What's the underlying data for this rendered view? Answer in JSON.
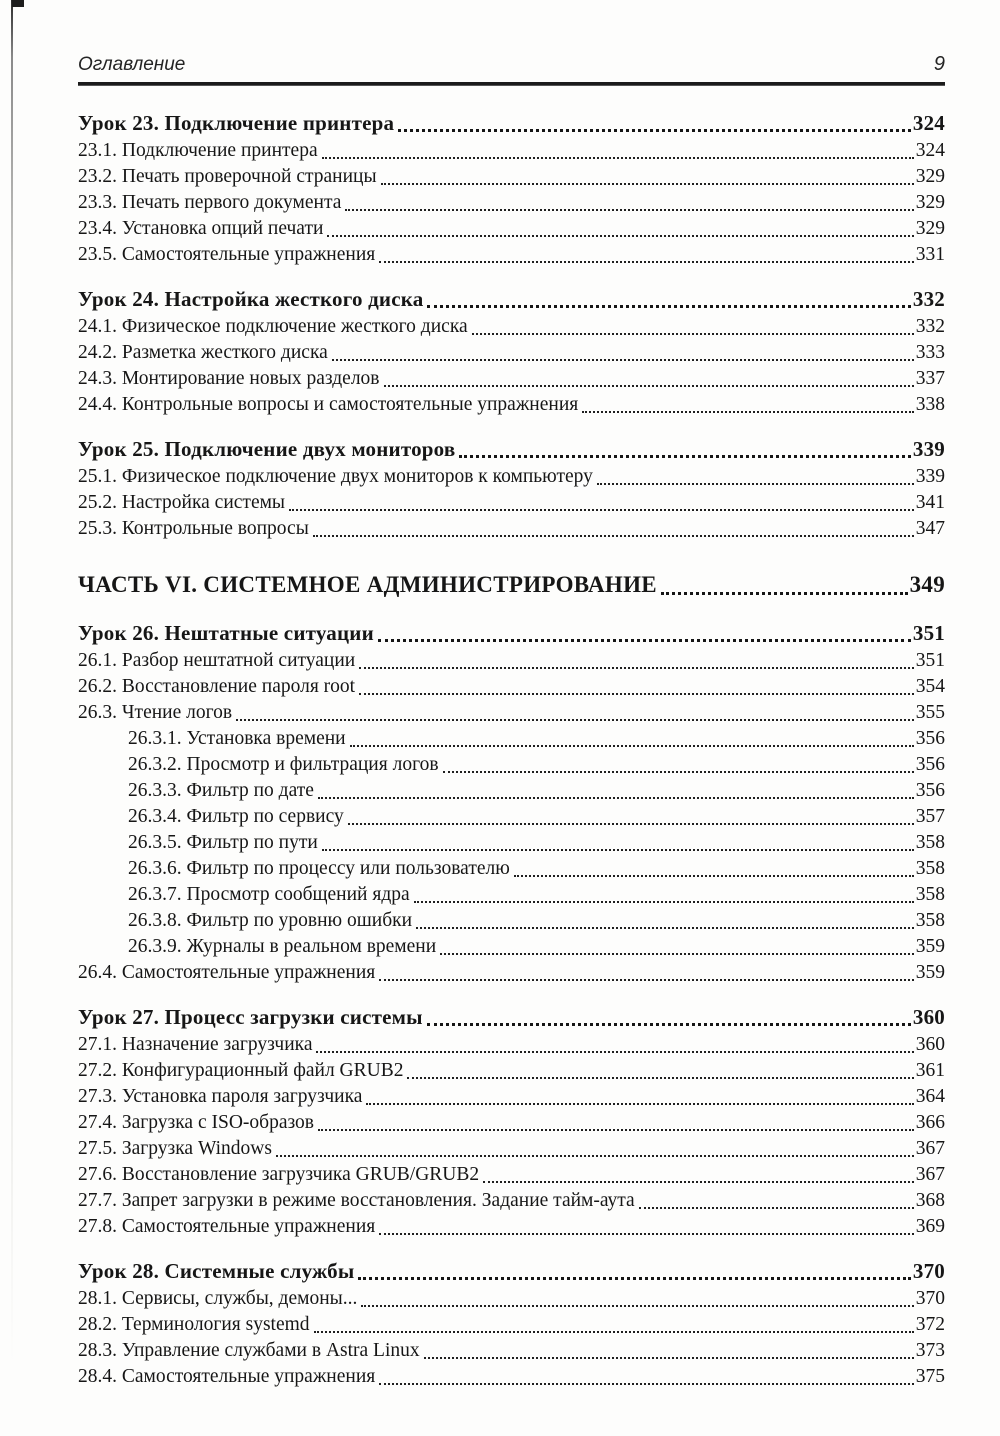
{
  "colors": {
    "paper": "#fdfdfc",
    "ink": "#161616"
  },
  "header": {
    "title": "Оглавление",
    "page_number": "9"
  },
  "toc": {
    "entries": [
      {
        "label": "Урок 23. Подключение принтера",
        "page": "324",
        "level": "chapter"
      },
      {
        "label": "23.1. Подключение принтера",
        "page": "324",
        "level": "section"
      },
      {
        "label": "23.2. Печать проверочной страницы",
        "page": "329",
        "level": "section"
      },
      {
        "label": "23.3. Печать первого документа",
        "page": "329",
        "level": "section"
      },
      {
        "label": "23.4. Установка опций печати",
        "page": "329",
        "level": "section"
      },
      {
        "label": "23.5. Самостоятельные упражнения",
        "page": "331",
        "level": "section"
      },
      {
        "label": "Урок 24. Настройка жесткого диска",
        "page": "332",
        "level": "chapter"
      },
      {
        "label": "24.1. Физическое подключение жесткого диска",
        "page": "332",
        "level": "section"
      },
      {
        "label": "24.2. Разметка жесткого диска",
        "page": "333",
        "level": "section"
      },
      {
        "label": "24.3. Монтирование новых разделов",
        "page": "337",
        "level": "section"
      },
      {
        "label": "24.4. Контрольные вопросы и самостоятельные упражнения",
        "page": "338",
        "level": "section"
      },
      {
        "label": "Урок 25. Подключение двух мониторов",
        "page": "339",
        "level": "chapter"
      },
      {
        "label": "25.1. Физическое подключение двух мониторов к компьютеру",
        "page": "339",
        "level": "section"
      },
      {
        "label": "25.2. Настройка системы",
        "page": "341",
        "level": "section"
      },
      {
        "label": "25.3. Контрольные вопросы",
        "page": "347",
        "level": "section"
      },
      {
        "label": "ЧАСТЬ VI. СИСТЕМНОЕ АДМИНИСТРИРОВАНИЕ",
        "page": "349",
        "level": "part"
      },
      {
        "label": "Урок 26. Нештатные ситуации",
        "page": "351",
        "level": "chapter"
      },
      {
        "label": "26.1. Разбор нештатной ситуации",
        "page": "351",
        "level": "section"
      },
      {
        "label": "26.2. Восстановление пароля root",
        "page": "354",
        "level": "section"
      },
      {
        "label": "26.3. Чтение логов",
        "page": "355",
        "level": "section"
      },
      {
        "label": "26.3.1. Установка времени",
        "page": "356",
        "level": "subsection"
      },
      {
        "label": "26.3.2. Просмотр и фильтрация логов",
        "page": "356",
        "level": "subsection"
      },
      {
        "label": "26.3.3. Фильтр по дате",
        "page": "356",
        "level": "subsection"
      },
      {
        "label": "26.3.4. Фильтр по сервису",
        "page": "357",
        "level": "subsection"
      },
      {
        "label": "26.3.5. Фильтр по пути",
        "page": "358",
        "level": "subsection"
      },
      {
        "label": "26.3.6. Фильтр по процессу или пользователю",
        "page": "358",
        "level": "subsection"
      },
      {
        "label": "26.3.7. Просмотр сообщений ядра",
        "page": "358",
        "level": "subsection"
      },
      {
        "label": "26.3.8. Фильтр по уровню ошибки",
        "page": "358",
        "level": "subsection"
      },
      {
        "label": "26.3.9. Журналы в реальном времени",
        "page": "359",
        "level": "subsection"
      },
      {
        "label": "26.4. Самостоятельные упражнения",
        "page": "359",
        "level": "section"
      },
      {
        "label": "Урок 27. Процесс загрузки системы",
        "page": "360",
        "level": "chapter"
      },
      {
        "label": "27.1. Назначение загрузчика",
        "page": "360",
        "level": "section"
      },
      {
        "label": "27.2. Конфигурационный файл GRUB2",
        "page": "361",
        "level": "section"
      },
      {
        "label": "27.3. Установка пароля загрузчика",
        "page": "364",
        "level": "section"
      },
      {
        "label": "27.4. Загрузка с ISO-образов",
        "page": "366",
        "level": "section"
      },
      {
        "label": "27.5. Загрузка Windows",
        "page": "367",
        "level": "section"
      },
      {
        "label": "27.6. Восстановление загрузчика GRUB/GRUB2",
        "page": "367",
        "level": "section"
      },
      {
        "label": "27.7. Запрет загрузки в режиме восстановления. Задание тайм-аута",
        "page": "368",
        "level": "section"
      },
      {
        "label": "27.8. Самостоятельные упражнения",
        "page": "369",
        "level": "section"
      },
      {
        "label": "Урок 28. Системные службы",
        "page": "370",
        "level": "chapter"
      },
      {
        "label": "28.1. Сервисы, службы, демоны...",
        "page": "370",
        "level": "section"
      },
      {
        "label": "28.2. Терминология systemd",
        "page": "372",
        "level": "section"
      },
      {
        "label": "28.3. Управление службами в Astra Linux",
        "page": "373",
        "level": "section"
      },
      {
        "label": "28.4. Самостоятельные упражнения",
        "page": "375",
        "level": "section"
      }
    ]
  }
}
